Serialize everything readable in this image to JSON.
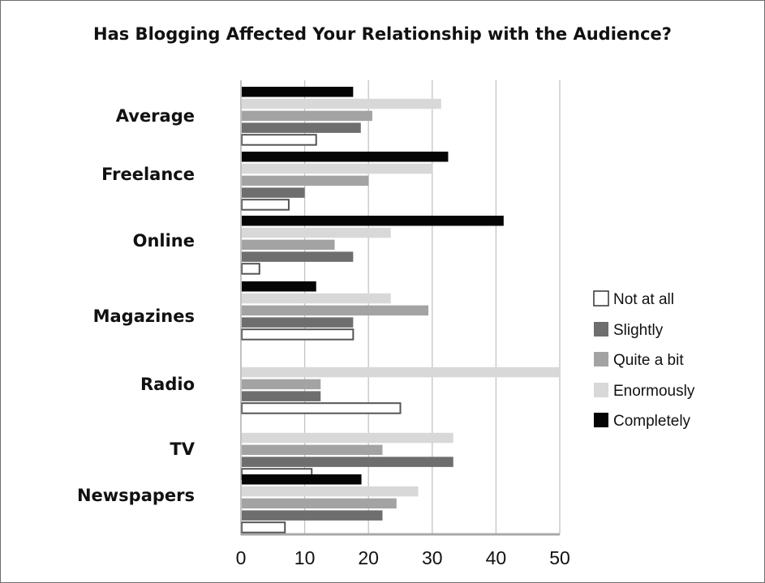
{
  "chart_data": {
    "type": "bar",
    "orientation": "horizontal",
    "title": "Has Blogging Affected Your Relationship with the Audience?",
    "xlabel": "",
    "ylabel": "",
    "xlim": [
      0,
      50
    ],
    "xticks": [
      0,
      10,
      20,
      30,
      40,
      50
    ],
    "grid": true,
    "legend_position": "right",
    "categories": [
      "Average",
      "Freelance",
      "Online",
      "Magazines",
      "Radio",
      "TV",
      "Newspapers"
    ],
    "series": [
      {
        "name": "Not at all",
        "color": "#ffffff",
        "values": [
          11.8,
          7.5,
          2.9,
          17.6,
          25.0,
          11.1,
          6.9
        ]
      },
      {
        "name": "Slightly",
        "color": "#6e6e6e",
        "values": [
          18.8,
          10.0,
          17.6,
          17.6,
          12.5,
          33.3,
          22.2
        ]
      },
      {
        "name": "Quite a bit",
        "color": "#a3a3a3",
        "values": [
          20.6,
          20.0,
          14.7,
          29.4,
          12.5,
          22.2,
          24.4
        ]
      },
      {
        "name": "Enormously",
        "color": "#d8d8d8",
        "values": [
          31.4,
          30.0,
          23.5,
          23.5,
          50.0,
          33.3,
          27.8
        ]
      },
      {
        "name": "Completely",
        "color": "#050505",
        "values": [
          17.6,
          32.5,
          41.2,
          11.8,
          0,
          0,
          18.9
        ]
      }
    ]
  }
}
